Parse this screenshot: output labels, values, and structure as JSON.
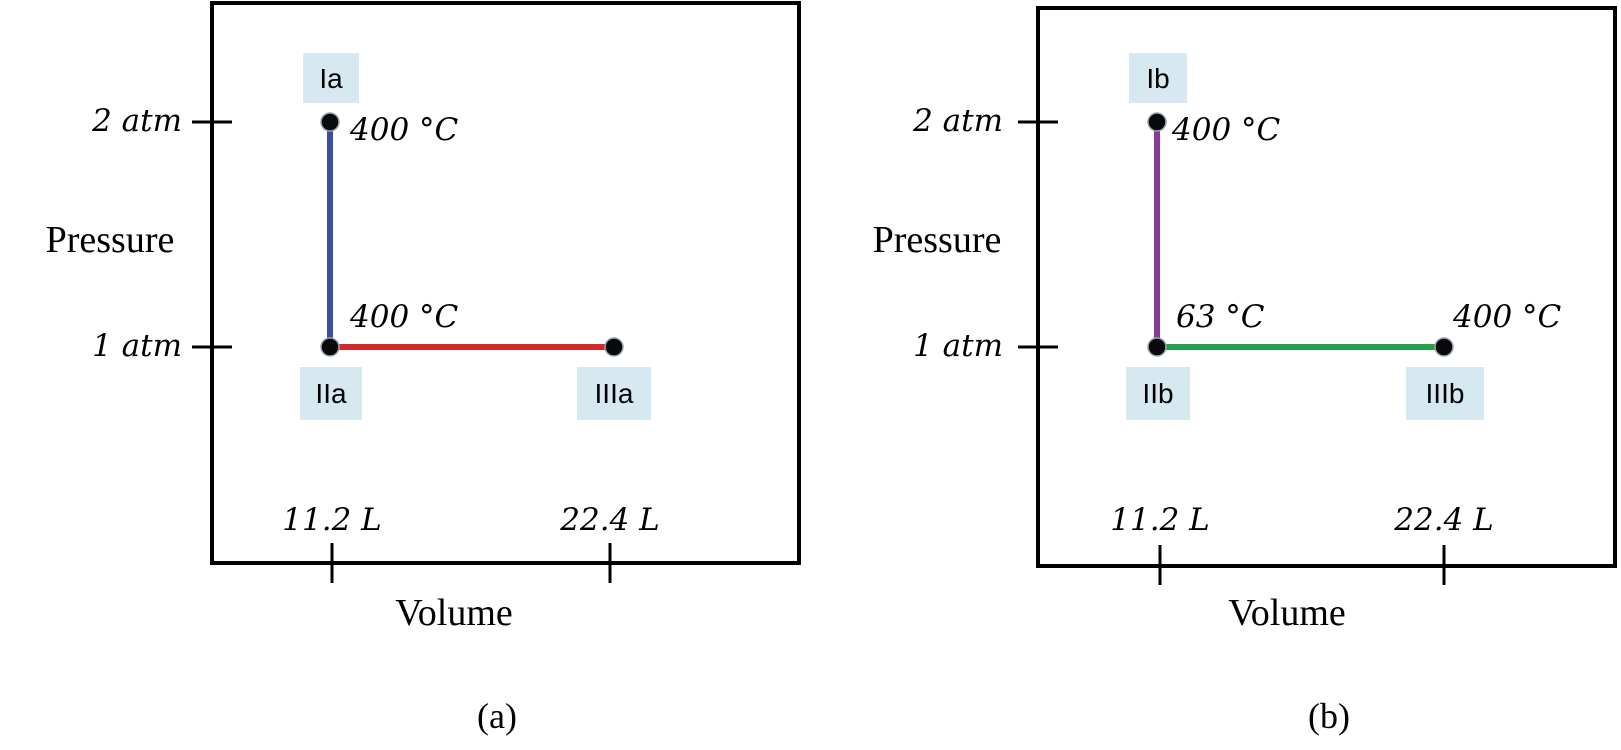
{
  "colors": {
    "path_a_vertical": "#3b4ea3",
    "path_a_horizontal": "#d02a2a",
    "path_b_vertical": "#8a3a98",
    "path_b_horizontal": "#22a04a",
    "state_box": "#d6e9f1"
  },
  "panels": [
    {
      "caption": "(a)",
      "y_axis_title": "Pressure",
      "x_axis_title": "Volume",
      "y_ticks": [
        "2 atm",
        "1 atm"
      ],
      "x_ticks": [
        "11.2 L",
        "22.4 L"
      ],
      "states": [
        {
          "label": "Ia",
          "pressure_atm": 2,
          "volume_L": 11.2,
          "temperature": "400 °C"
        },
        {
          "label": "IIa",
          "pressure_atm": 1,
          "volume_L": 11.2,
          "temperature": "400 °C"
        },
        {
          "label": "IIIa",
          "pressure_atm": 1,
          "volume_L": 22.4,
          "temperature": ""
        }
      ]
    },
    {
      "caption": "(b)",
      "y_axis_title": "Pressure",
      "x_axis_title": "Volume",
      "y_ticks": [
        "2 atm",
        "1 atm"
      ],
      "x_ticks": [
        "11.2 L",
        "22.4 L"
      ],
      "states": [
        {
          "label": "Ib",
          "pressure_atm": 2,
          "volume_L": 11.2,
          "temperature": "400 °C"
        },
        {
          "label": "IIb",
          "pressure_atm": 1,
          "volume_L": 11.2,
          "temperature": "63 °C"
        },
        {
          "label": "IIIb",
          "pressure_atm": 1,
          "volume_L": 22.4,
          "temperature": "400 °C"
        }
      ]
    }
  ]
}
